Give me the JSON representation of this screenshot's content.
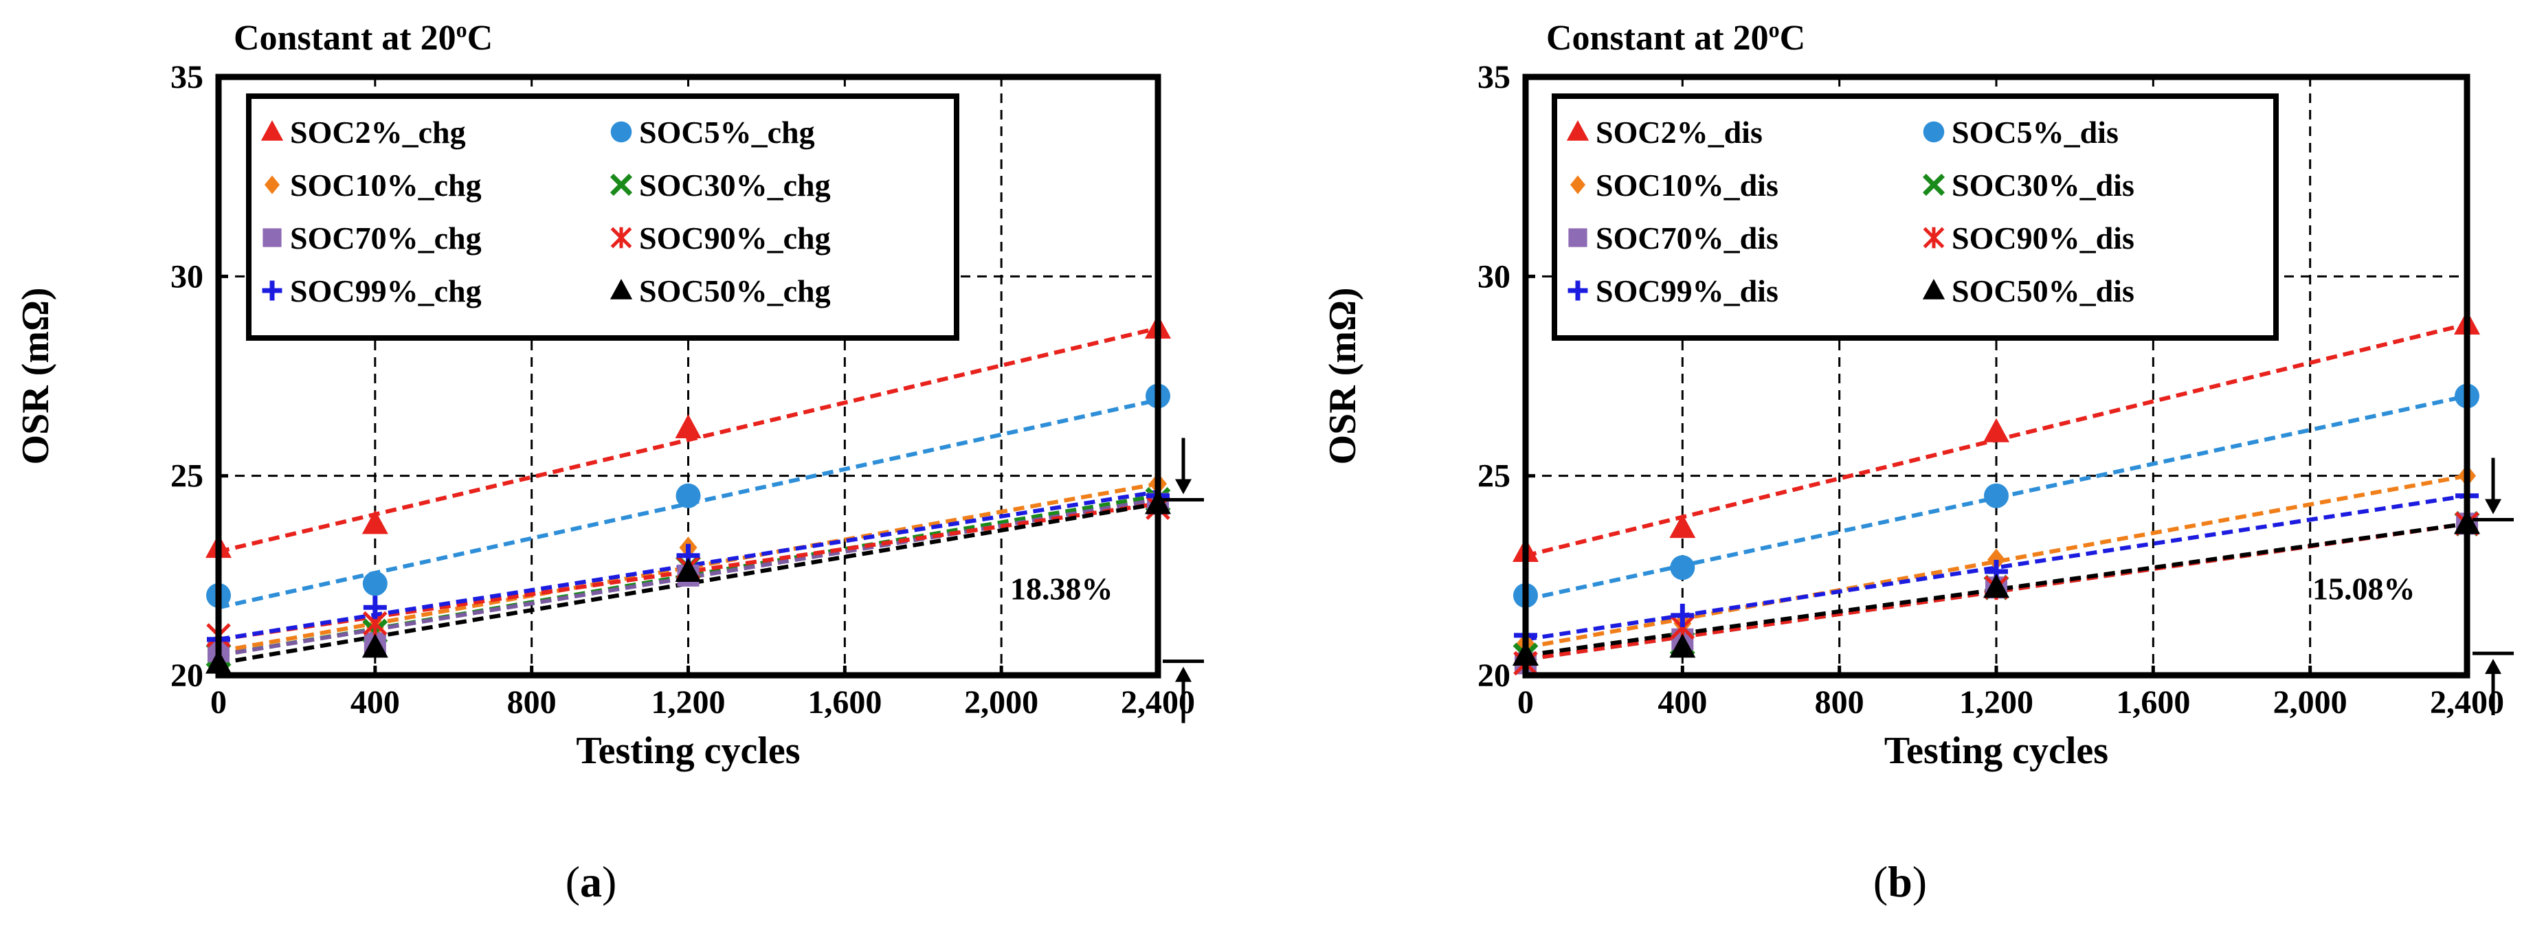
{
  "chart_data": [
    {
      "type": "scatter",
      "title": "Constant at 20",
      "title_super": "o",
      "title_suffix": "C",
      "xlabel": "Testing cycles",
      "ylabel": "OSR (mΩ)",
      "xlim": [
        0,
        2400
      ],
      "ylim": [
        20,
        35
      ],
      "xticks": [
        0,
        400,
        800,
        1200,
        1600,
        2000,
        2400
      ],
      "xtick_labels": [
        "0",
        "400",
        "800",
        "1,200",
        "1,600",
        "2,000",
        "2,400"
      ],
      "yticks": [
        20,
        25,
        30,
        35
      ],
      "ytick_labels": [
        "20",
        "25",
        "30",
        "35"
      ],
      "grid": true,
      "legend_position": "upper-left-inside",
      "caption": "a",
      "annotation": {
        "text": "18.38%",
        "range": [
          20.35,
          24.4
        ]
      },
      "x": [
        0,
        400,
        1200,
        2400
      ],
      "series": [
        {
          "name": "SOC2%_chg",
          "marker": "triangle",
          "color": "#e8221c",
          "values": [
            23.2,
            23.8,
            26.2,
            28.7
          ],
          "trend": [
            23.1,
            28.7
          ]
        },
        {
          "name": "SOC5%_chg",
          "marker": "circle",
          "color": "#2e8fd8",
          "values": [
            22.0,
            22.3,
            24.5,
            27.0
          ],
          "trend": [
            21.7,
            26.9
          ]
        },
        {
          "name": "SOC10%_chg",
          "marker": "diamond",
          "color": "#f07f1a",
          "values": [
            20.7,
            21.2,
            23.2,
            24.8
          ],
          "trend": [
            20.6,
            24.8
          ]
        },
        {
          "name": "SOC30%_chg",
          "marker": "x",
          "color": "#1a8a1a",
          "values": [
            20.5,
            21.1,
            22.7,
            24.4
          ],
          "trend": [
            20.5,
            24.5
          ]
        },
        {
          "name": "SOC70%_chg",
          "marker": "square",
          "color": "#8e6bb5",
          "values": [
            20.6,
            20.8,
            22.5,
            24.3
          ],
          "trend": [
            20.5,
            24.4
          ]
        },
        {
          "name": "SOC90%_chg",
          "marker": "star",
          "color": "#e8221c",
          "values": [
            21.0,
            21.3,
            22.7,
            24.2
          ],
          "trend": [
            20.9,
            24.3
          ]
        },
        {
          "name": "SOC99%_chg",
          "marker": "plus",
          "color": "#1c1ce0",
          "values": [
            20.9,
            21.7,
            23.0,
            24.5
          ],
          "trend": [
            20.9,
            24.6
          ]
        },
        {
          "name": "SOC50%_chg",
          "marker": "triangle",
          "color": "#000000",
          "values": [
            20.3,
            20.7,
            22.6,
            24.3
          ],
          "trend": [
            20.3,
            24.3
          ]
        }
      ]
    },
    {
      "type": "scatter",
      "title": "Constant at 20",
      "title_super": "o",
      "title_suffix": "C",
      "xlabel": "Testing cycles",
      "ylabel": "OSR (mΩ)",
      "xlim": [
        0,
        2400
      ],
      "ylim": [
        20,
        35
      ],
      "xticks": [
        0,
        400,
        800,
        1200,
        1600,
        2000,
        2400
      ],
      "xtick_labels": [
        "0",
        "400",
        "800",
        "1,200",
        "1,600",
        "2,000",
        "2,400"
      ],
      "yticks": [
        20,
        25,
        30,
        35
      ],
      "ytick_labels": [
        "20",
        "25",
        "30",
        "35"
      ],
      "grid": true,
      "legend_position": "upper-left-inside",
      "caption": "b",
      "annotation": {
        "text": "15.08%",
        "range": [
          20.55,
          23.9
        ]
      },
      "x": [
        0,
        400,
        1200,
        2400
      ],
      "series": [
        {
          "name": "SOC2%_dis",
          "marker": "triangle",
          "color": "#e8221c",
          "values": [
            23.1,
            23.7,
            26.1,
            28.8
          ],
          "trend": [
            23.0,
            28.8
          ]
        },
        {
          "name": "SOC5%_dis",
          "marker": "circle",
          "color": "#2e8fd8",
          "values": [
            22.0,
            22.7,
            24.5,
            27.0
          ],
          "trend": [
            21.9,
            27.0
          ]
        },
        {
          "name": "SOC10%_dis",
          "marker": "diamond",
          "color": "#f07f1a",
          "values": [
            20.8,
            21.3,
            22.9,
            25.0
          ],
          "trend": [
            20.7,
            25.0
          ]
        },
        {
          "name": "SOC30%_dis",
          "marker": "x",
          "color": "#1a8a1a",
          "values": [
            20.5,
            20.8,
            22.2,
            23.8
          ],
          "trend": [
            20.4,
            23.8
          ]
        },
        {
          "name": "SOC70%_dis",
          "marker": "square",
          "color": "#8e6bb5",
          "values": [
            20.3,
            20.9,
            22.2,
            23.8
          ],
          "trend": [
            20.4,
            23.8
          ]
        },
        {
          "name": "SOC90%_dis",
          "marker": "star",
          "color": "#e8221c",
          "values": [
            20.3,
            21.2,
            22.2,
            23.8
          ],
          "trend": [
            20.4,
            23.8
          ]
        },
        {
          "name": "SOC99%_dis",
          "marker": "plus",
          "color": "#1c1ce0",
          "values": [
            21.0,
            21.5,
            22.6,
            24.5
          ],
          "trend": [
            20.9,
            24.5
          ]
        },
        {
          "name": "SOC50%_dis",
          "marker": "triangle",
          "color": "#000000",
          "values": [
            20.5,
            20.7,
            22.2,
            23.8
          ],
          "trend": [
            20.5,
            23.8
          ]
        }
      ]
    }
  ]
}
